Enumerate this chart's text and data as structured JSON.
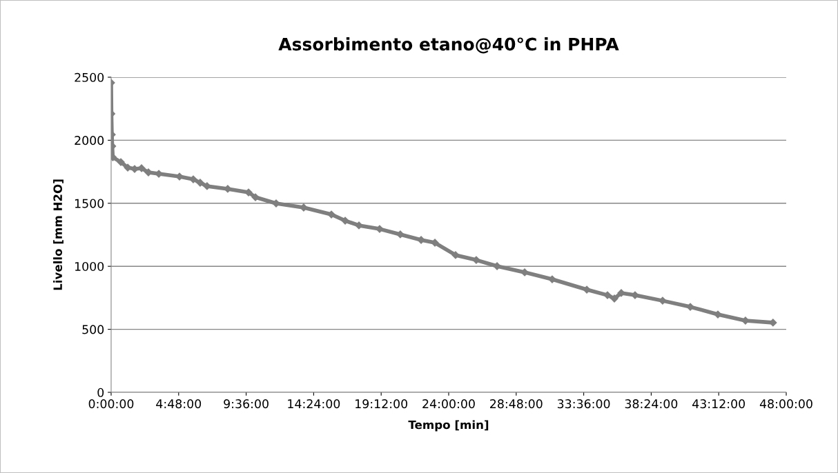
{
  "chart_data": {
    "type": "line",
    "title": "Assorbimento etano@40°C in PHPA",
    "xlabel": "Tempo [min]",
    "ylabel": "Livello [mm H2O]",
    "x": [
      0,
      0.02,
      0.05,
      0.08,
      0.12,
      0.69,
      1.18,
      1.67,
      2.16,
      2.65,
      3.39,
      4.86,
      5.84,
      6.33,
      6.82,
      8.29,
      9.77,
      10.26,
      11.73,
      13.69,
      15.66,
      16.64,
      17.62,
      19.09,
      20.56,
      22.04,
      23.02,
      24.49,
      25.96,
      27.44,
      29.4,
      31.36,
      33.82,
      35.29,
      35.78,
      36.27,
      37.25,
      39.21,
      41.18,
      43.14,
      45.1,
      47.06
    ],
    "series": [
      {
        "color": "#7f7f7f",
        "values": [
          2456,
          2210,
          2045,
          1953,
          1865,
          1827,
          1783,
          1772,
          1778,
          1745,
          1734,
          1712,
          1690,
          1663,
          1636,
          1614,
          1586,
          1548,
          1499,
          1466,
          1411,
          1362,
          1324,
          1296,
          1253,
          1209,
          1187,
          1089,
          1050,
          1001,
          952,
          897,
          815,
          771,
          744,
          788,
          771,
          727,
          678,
          618,
          569,
          553
        ]
      }
    ],
    "xlim": [
      0,
      48
    ],
    "xticks": [
      {
        "value": 0,
        "label": "0:00:00"
      },
      {
        "value": 4.8,
        "label": "4:48:00"
      },
      {
        "value": 9.6,
        "label": "9:36:00"
      },
      {
        "value": 14.4,
        "label": "14:24:00"
      },
      {
        "value": 19.2,
        "label": "19:12:00"
      },
      {
        "value": 24,
        "label": "24:00:00"
      },
      {
        "value": 28.8,
        "label": "28:48:00"
      },
      {
        "value": 33.6,
        "label": "33:36:00"
      },
      {
        "value": 38.4,
        "label": "38:24:00"
      },
      {
        "value": 43.2,
        "label": "43:12:00"
      },
      {
        "value": 48,
        "label": "48:00:00"
      }
    ],
    "ylim": [
      0,
      2500
    ],
    "yticks": [
      0,
      500,
      1000,
      1500,
      2000,
      2500
    ],
    "grid": "y",
    "marker": "diamond",
    "line_style": "solid"
  }
}
